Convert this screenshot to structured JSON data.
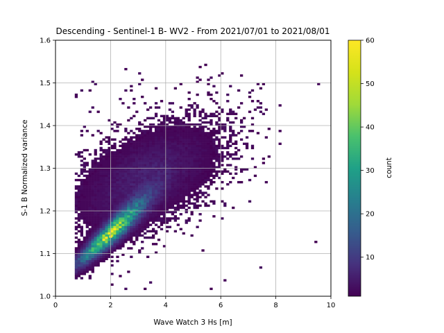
{
  "chart_data": {
    "type": "heatmap",
    "title": "Descending - Sentinel-1 B- WV2 - From 2021/07/01 to 2021/08/01",
    "xlabel": "Wave Watch 3 Hs [m]",
    "ylabel": "S-1 B Normalized variance",
    "xlim": [
      0,
      10
    ],
    "ylim": [
      1.0,
      1.6
    ],
    "xticks": [
      "0",
      "2",
      "4",
      "6",
      "8",
      "10"
    ],
    "yticks": [
      "1.0",
      "1.1",
      "1.2",
      "1.3",
      "1.4",
      "1.5",
      "1.6"
    ],
    "grid": true,
    "colormap": "viridis",
    "colorbar": {
      "label": "count",
      "range": [
        1,
        60
      ],
      "ticks": [
        "10",
        "20",
        "30",
        "40",
        "50",
        "60"
      ]
    },
    "histogram_bins": {
      "x_bin_width": 0.1,
      "y_bin_width": 0.005
    },
    "density_structure": {
      "peak": {
        "x": 2.0,
        "y": 1.14,
        "count": 60
      },
      "main_trend": "normalized variance increases with Hs; dense ridge from (1.0, 1.09) to (3.5, 1.24)",
      "broad_cloud": "sparse counts (1-10) spread over Hs 1-7 m and variance 1.2-1.45",
      "outliers": "isolated single counts up to Hs 10 m and variance 1.6"
    }
  },
  "colors": {
    "background": "#ffffff",
    "grid": "#b0b0b0",
    "axes": "#000000",
    "viridis_low": "#440154",
    "viridis_high": "#fde725"
  }
}
